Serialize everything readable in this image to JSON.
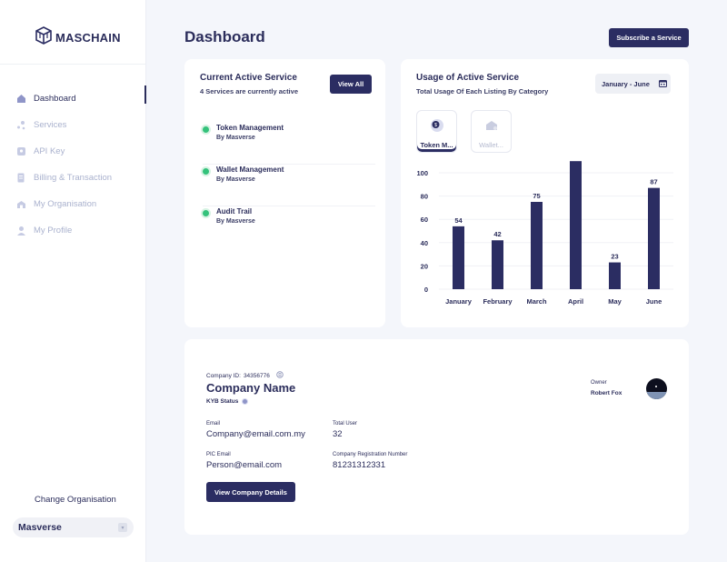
{
  "brand": {
    "name": "MASCHAIN",
    "color": "#2b2d62"
  },
  "sidebar": {
    "items": [
      {
        "label": "Dashboard",
        "icon": "home-icon",
        "active": true
      },
      {
        "label": "Services",
        "icon": "services-icon",
        "active": false
      },
      {
        "label": "API Key",
        "icon": "key-icon",
        "active": false
      },
      {
        "label": "Billing & Transaction",
        "icon": "billing-icon",
        "active": false
      },
      {
        "label": "My Organisation",
        "icon": "organisation-icon",
        "active": false
      },
      {
        "label": "My Profile",
        "icon": "profile-icon",
        "active": false
      }
    ],
    "change_org_label": "Change Organisation",
    "org_selected": "Masverse"
  },
  "header": {
    "title": "Dashboard",
    "subscribe_label": "Subscribe a Service"
  },
  "active_service": {
    "title": "Current Active Service",
    "subtitle": "4 Services are currently active",
    "view_all_label": "View All",
    "status_color": "#34c27b",
    "items": [
      {
        "name": "Token Management",
        "by": "By Masverse"
      },
      {
        "name": "Wallet Management",
        "by": "By Masverse"
      },
      {
        "name": "Audit Trail",
        "by": "By Masverse"
      }
    ]
  },
  "usage": {
    "title": "Usage of Active Service",
    "subtitle": "Total Usage Of Each Listing By Category",
    "date_range": "January - June",
    "tiles": [
      {
        "label": "Token M...",
        "icon": "token-icon",
        "active": true
      },
      {
        "label": "Wallet...",
        "icon": "wallet-icon",
        "active": false
      }
    ]
  },
  "chart_data": {
    "type": "bar",
    "categories": [
      "January",
      "February",
      "March",
      "April",
      "May",
      "June"
    ],
    "values": [
      54,
      42,
      75,
      110,
      23,
      87
    ],
    "yticks": [
      0,
      20,
      40,
      60,
      80,
      100
    ],
    "ylim": [
      0,
      100
    ],
    "bar_color": "#2b2d62",
    "grid": true
  },
  "company": {
    "id_label": "Company ID:",
    "id_value": "34356776",
    "name": "Company Name",
    "kyb_label": "KYB Status",
    "email_label": "Email",
    "email_value": "Company@email.com.my",
    "total_user_label": "Total User",
    "total_user_value": "32",
    "pic_email_label": "PIC Email",
    "pic_email_value": "Person@email.com",
    "reg_label": "Company Registration Number",
    "reg_value": "81231312331",
    "owner_label": "Owner",
    "owner_name": "Robert Fox",
    "view_details_label": "View Company Details"
  }
}
